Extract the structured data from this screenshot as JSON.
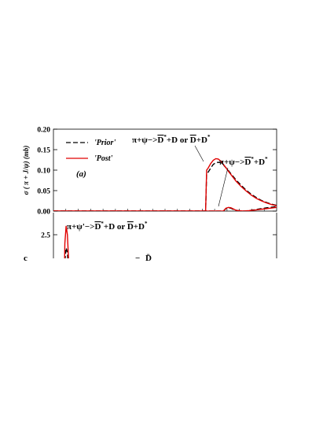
{
  "chart_data": [
    {
      "type": "line",
      "panel_label": "(a)",
      "ylabel": "σ ( π + J/ψ) (mb)",
      "ylim": [
        0,
        0.2
      ],
      "y_ticks": [
        "0.00",
        "0.05",
        "0.10",
        "0.15",
        "0.20"
      ],
      "legend_placement": "top-left",
      "series": [
        {
          "name": "'Prior'",
          "style": "dashed",
          "color": "#000000",
          "points": [
            [
              0,
              0
            ],
            [
              50,
              0
            ],
            [
              60,
              0
            ],
            [
              60.4,
              0.09
            ],
            [
              61,
              0.095
            ],
            [
              62,
              0.105
            ],
            [
              63,
              0.114
            ],
            [
              64,
              0.118
            ],
            [
              65,
              0.119
            ],
            [
              66,
              0.118
            ],
            [
              67,
              0.113
            ],
            [
              68,
              0.106
            ],
            [
              69,
              0.099
            ],
            [
              70,
              0.091
            ],
            [
              72,
              0.076
            ],
            [
              74,
              0.063
            ],
            [
              76,
              0.051
            ],
            [
              78,
              0.041
            ],
            [
              80,
              0.033
            ],
            [
              82,
              0.026
            ],
            [
              84,
              0.021
            ],
            [
              86,
              0.017
            ],
            [
              88,
              0.014
            ],
            [
              88,
              0.014
            ]
          ]
        },
        {
          "name": "'Post'",
          "style": "solid",
          "color": "#e00000",
          "points": [
            [
              0,
              0
            ],
            [
              50,
              0
            ],
            [
              60,
              0
            ],
            [
              60.4,
              0.1
            ],
            [
              61,
              0.105
            ],
            [
              62,
              0.116
            ],
            [
              63,
              0.124
            ],
            [
              64,
              0.128
            ],
            [
              65,
              0.127
            ],
            [
              66,
              0.122
            ],
            [
              67,
              0.114
            ],
            [
              68,
              0.106
            ],
            [
              69,
              0.097
            ],
            [
              70,
              0.089
            ],
            [
              72,
              0.073
            ],
            [
              74,
              0.06
            ],
            [
              76,
              0.049
            ],
            [
              78,
              0.039
            ],
            [
              80,
              0.031
            ],
            [
              82,
              0.025
            ],
            [
              84,
              0.02
            ],
            [
              86,
              0.016
            ],
            [
              88,
              0.013
            ]
          ]
        },
        {
          "name": "",
          "style": "dashed",
          "color": "#000000",
          "points": [
            [
              0,
              0
            ],
            [
              67,
              0
            ],
            [
              68,
              0.006
            ],
            [
              69,
              0.008
            ],
            [
              70,
              0.007
            ],
            [
              71,
              0.004
            ],
            [
              72,
              0.002
            ],
            [
              73,
              0.001
            ],
            [
              75,
              0
            ],
            [
              77,
              0.001
            ],
            [
              80,
              0.004
            ],
            [
              84,
              0.008
            ],
            [
              88,
              0.011
            ]
          ]
        },
        {
          "name": "",
          "style": "solid",
          "color": "#e00000",
          "points": [
            [
              0,
              0
            ],
            [
              67,
              0
            ],
            [
              68,
              0.007
            ],
            [
              69,
              0.009
            ],
            [
              70,
              0.008
            ],
            [
              71,
              0.005
            ],
            [
              72,
              0.002
            ],
            [
              73,
              0.001
            ],
            [
              75,
              0
            ],
            [
              77,
              0.001
            ],
            [
              80,
              0.003
            ],
            [
              84,
              0.006
            ],
            [
              88,
              0.009
            ]
          ]
        }
      ],
      "annotations": [
        {
          "text": "π+ψ−>D̄* +D or D̄+D*"
        },
        {
          "text": "π+ψ−>D̄* +D*"
        }
      ]
    },
    {
      "type": "line",
      "y_ticks": [
        "2.5"
      ],
      "series": [
        {
          "name": "",
          "style": "dashed",
          "color": "#000000",
          "points": [
            [
              4,
              0.5
            ],
            [
              4.5,
              1.9
            ],
            [
              5,
              2.2
            ],
            [
              5.5,
              2.1
            ],
            [
              6,
              1.6
            ],
            [
              6.5,
              1.0
            ],
            [
              7,
              0.5
            ]
          ]
        },
        {
          "name": "",
          "style": "solid",
          "color": "#e00000",
          "points": [
            [
              4,
              0.5
            ],
            [
              4.5,
              2.3
            ],
            [
              5,
              2.7
            ],
            [
              5.5,
              2.5
            ],
            [
              6,
              1.9
            ],
            [
              6.5,
              1.1
            ],
            [
              7,
              0.5
            ]
          ]
        }
      ],
      "annotations": [
        {
          "text": "π+ψ'−>D̄* +D or D̄+D*"
        }
      ]
    }
  ]
}
